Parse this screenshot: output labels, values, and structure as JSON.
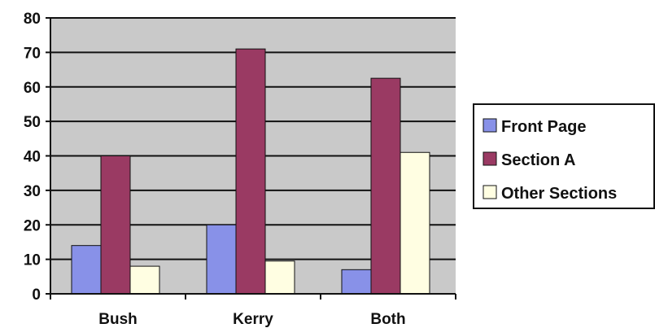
{
  "chart_data": {
    "type": "bar",
    "categories": [
      "Bush",
      "Kerry",
      "Both"
    ],
    "series": [
      {
        "name": "Front Page",
        "values": [
          14,
          20,
          7
        ],
        "color": "#8891e8"
      },
      {
        "name": "Section A",
        "values": [
          40,
          71,
          62.5
        ],
        "color": "#9a3a63"
      },
      {
        "name": "Other Sections",
        "values": [
          8,
          9.5,
          41
        ],
        "color": "#fffee2"
      }
    ],
    "title": "",
    "xlabel": "",
    "ylabel": "",
    "ylim": [
      0,
      80
    ],
    "yticks": [
      "0",
      "10",
      "20",
      "30",
      "40",
      "50",
      "60",
      "70",
      "80"
    ],
    "grid": true,
    "legend_position": "right",
    "plot_background": "#c9c9c9"
  }
}
